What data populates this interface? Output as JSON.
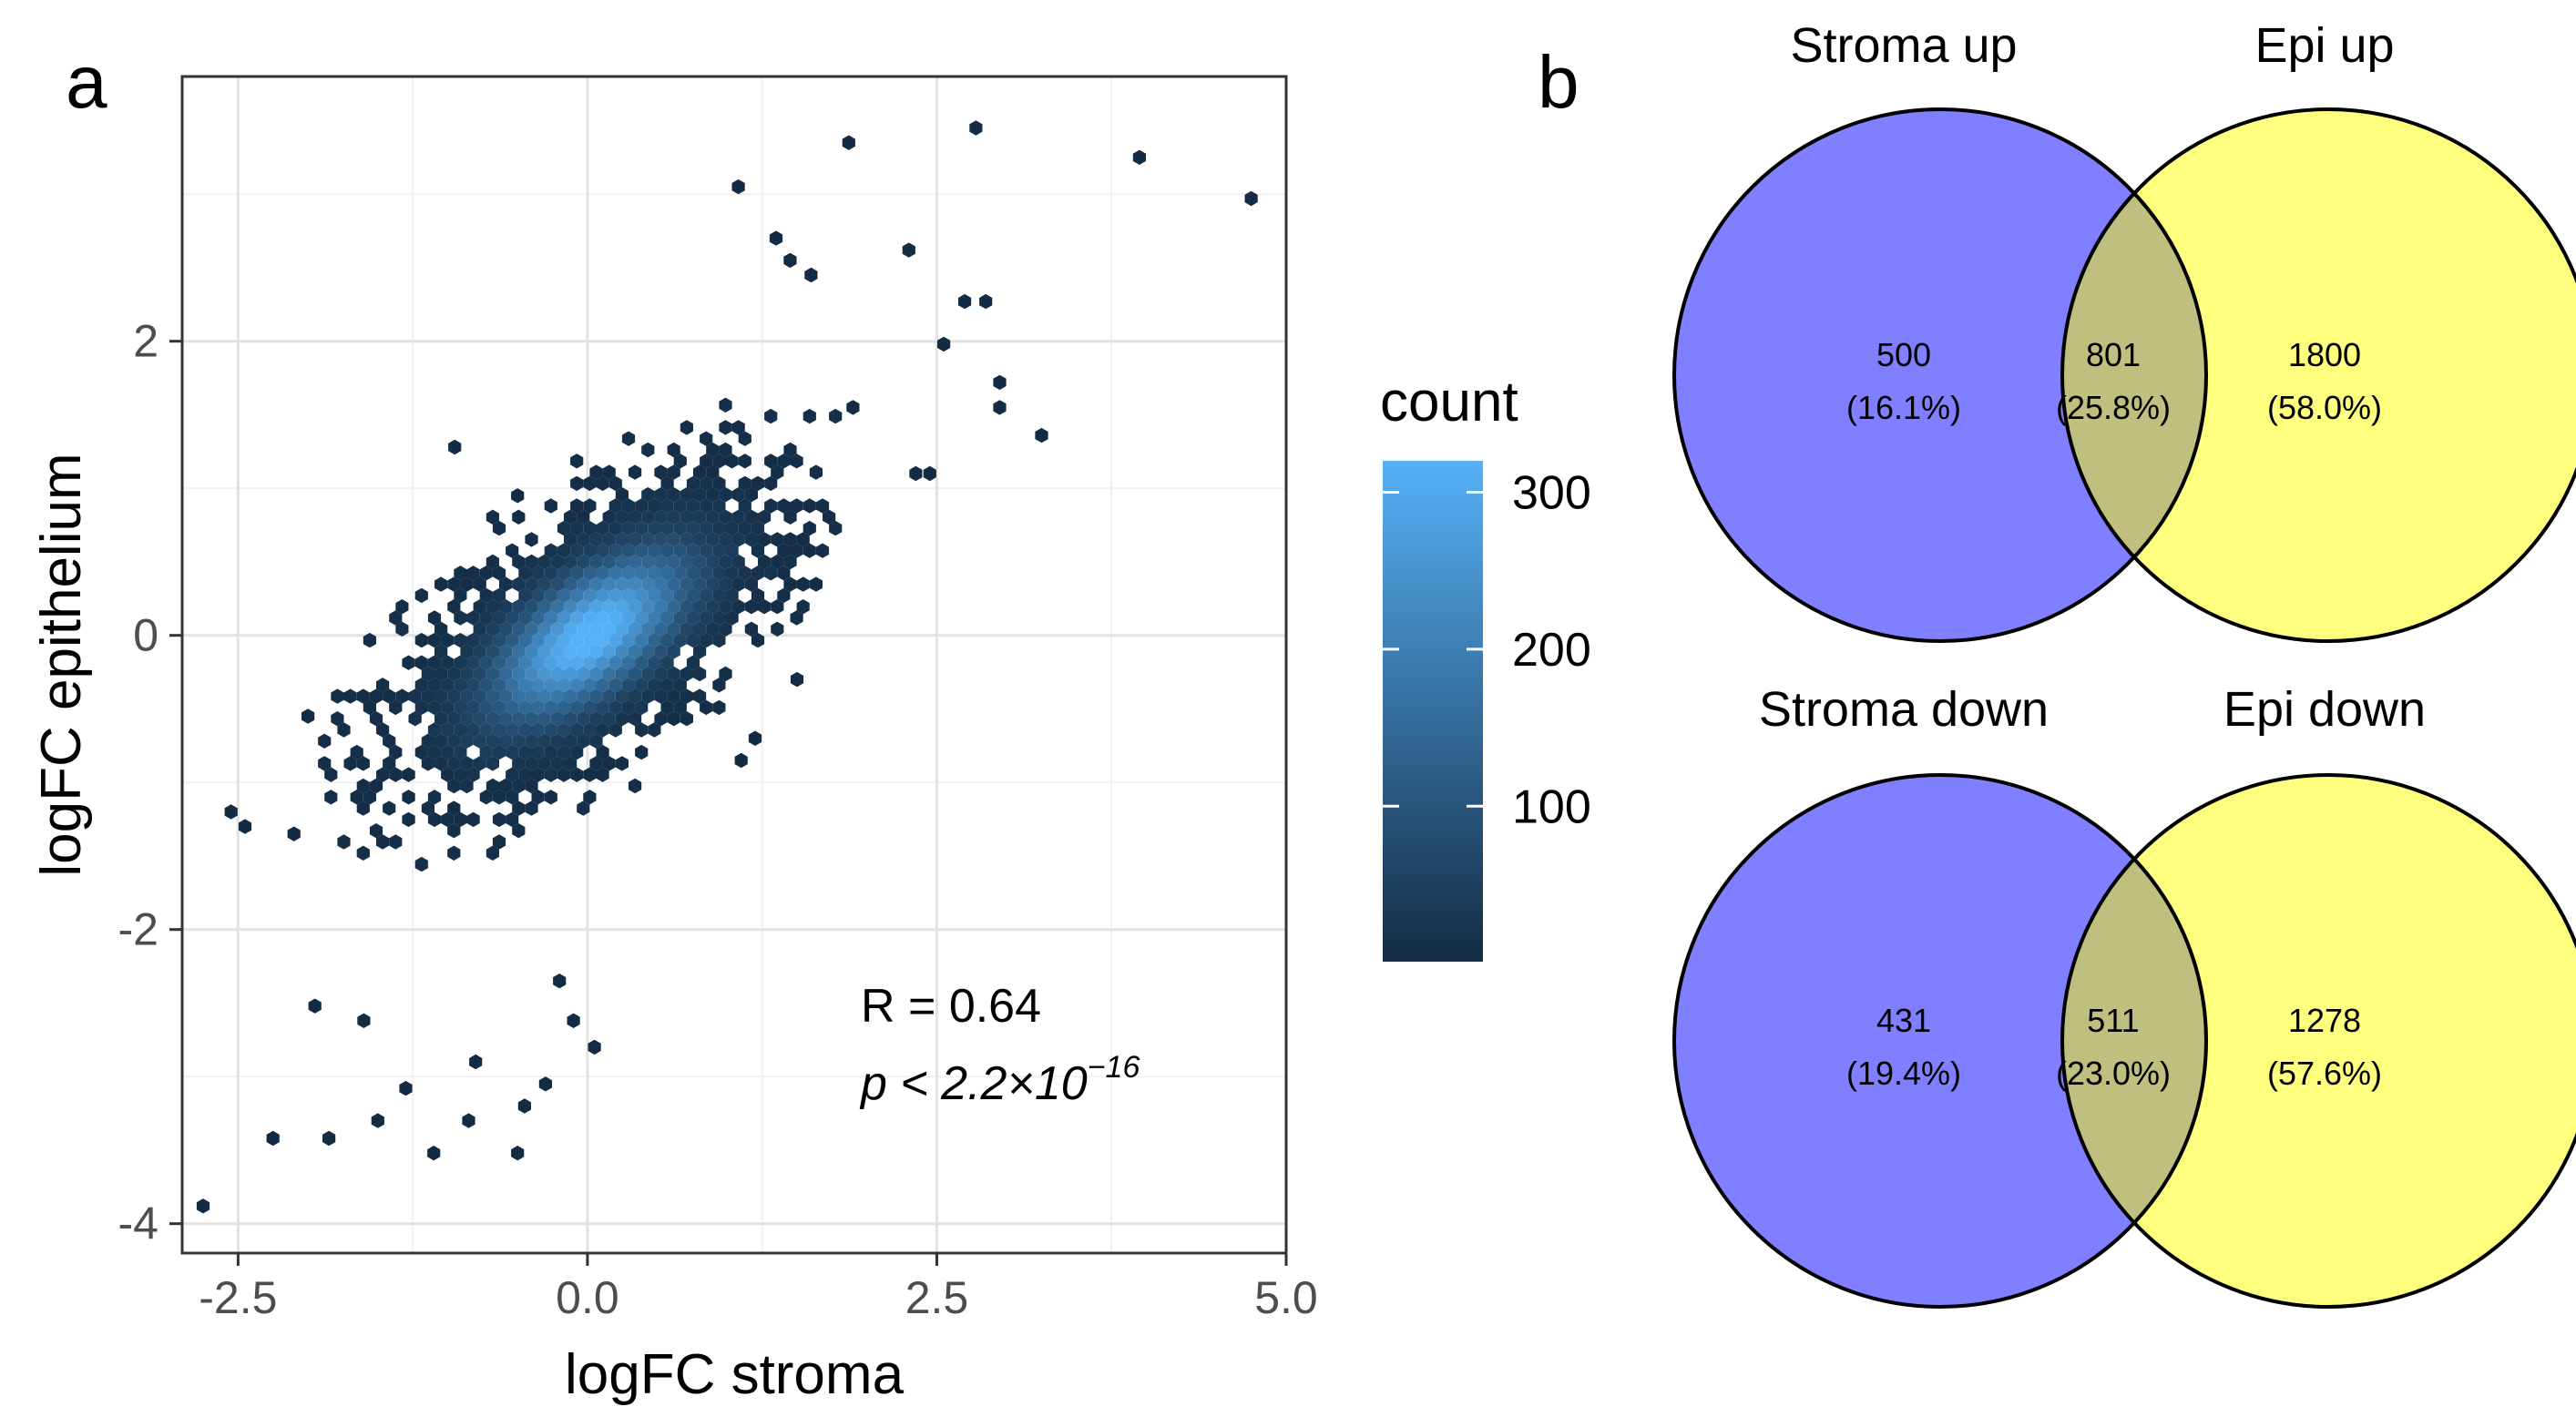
{
  "panel_labels": {
    "a": "a",
    "b": "b"
  },
  "chart_data": [
    {
      "type": "hexbin",
      "xlabel": "logFC stroma",
      "ylabel": "logFC epithelium",
      "xlim": [
        -2.9,
        5.0
      ],
      "ylim": [
        -4.2,
        3.8
      ],
      "xticks": [
        -2.5,
        0.0,
        2.5,
        5.0
      ],
      "xtick_labels": [
        "-2.5",
        "0.0",
        "2.5",
        "5.0"
      ],
      "yticks": [
        -4,
        -2,
        0,
        2
      ],
      "ytick_labels": [
        "-4",
        "-2",
        "0",
        "2"
      ],
      "grid": true,
      "legend": {
        "title": "count",
        "position": "right",
        "ticks": [
          100,
          200,
          300
        ],
        "tick_labels": [
          "100",
          "200",
          "300"
        ],
        "range": [
          1,
          320
        ],
        "colors": {
          "low": "#132B43",
          "high": "#56B1F7"
        }
      },
      "annotation": {
        "r_text": "R = 0.64",
        "p_prefix": "p < 2.2×10",
        "p_exponent": "−16"
      },
      "outliers": [
        [
          4.75,
          2.97
        ],
        [
          3.95,
          3.25
        ],
        [
          2.78,
          3.45
        ],
        [
          1.87,
          3.35
        ],
        [
          1.08,
          3.05
        ],
        [
          2.3,
          2.62
        ],
        [
          2.7,
          2.27
        ],
        [
          2.85,
          2.27
        ],
        [
          2.55,
          1.98
        ],
        [
          2.95,
          1.72
        ],
        [
          3.25,
          1.36
        ],
        [
          2.95,
          1.55
        ],
        [
          2.45,
          1.1
        ],
        [
          2.35,
          1.1
        ],
        [
          1.9,
          1.55
        ],
        [
          1.6,
          2.45
        ],
        [
          1.45,
          2.55
        ],
        [
          1.35,
          2.7
        ],
        [
          -0.95,
          1.28
        ],
        [
          -0.5,
          0.95
        ],
        [
          -2.75,
          -3.88
        ],
        [
          -2.25,
          -3.42
        ],
        [
          -1.85,
          -3.42
        ],
        [
          -1.1,
          -3.52
        ],
        [
          -0.85,
          -3.3
        ],
        [
          -0.5,
          -3.52
        ],
        [
          -0.45,
          -3.2
        ],
        [
          -0.3,
          -3.05
        ],
        [
          -1.5,
          -3.3
        ],
        [
          -1.3,
          -3.08
        ],
        [
          -0.8,
          -2.9
        ],
        [
          -1.95,
          -2.52
        ],
        [
          -2.55,
          -1.2
        ],
        [
          -2.45,
          -1.3
        ],
        [
          -2.1,
          -1.35
        ],
        [
          -2.0,
          -0.55
        ],
        [
          -1.6,
          -2.62
        ],
        [
          -0.1,
          -2.62
        ],
        [
          0.05,
          -2.8
        ],
        [
          1.2,
          -0.7
        ],
        [
          1.5,
          -0.3
        ],
        [
          1.1,
          -0.85
        ],
        [
          -0.2,
          -2.35
        ]
      ]
    },
    {
      "type": "venn",
      "diagrams": [
        {
          "left_label": "Stroma up",
          "right_label": "Epi up",
          "left_only": "500",
          "left_pct": "(16.1%)",
          "both": "801",
          "both_pct": "(25.8%)",
          "right_only": "1800",
          "right_pct": "(58.0%)"
        },
        {
          "left_label": "Stroma down",
          "right_label": "Epi down",
          "left_only": "431",
          "left_pct": "(19.4%)",
          "both": "511",
          "both_pct": "(23.0%)",
          "right_only": "1278",
          "right_pct": "(57.6%)"
        }
      ],
      "colors": {
        "left": "#7F7FFF",
        "right": "#FFFF7F",
        "overlap": "#BFBF80"
      }
    }
  ]
}
